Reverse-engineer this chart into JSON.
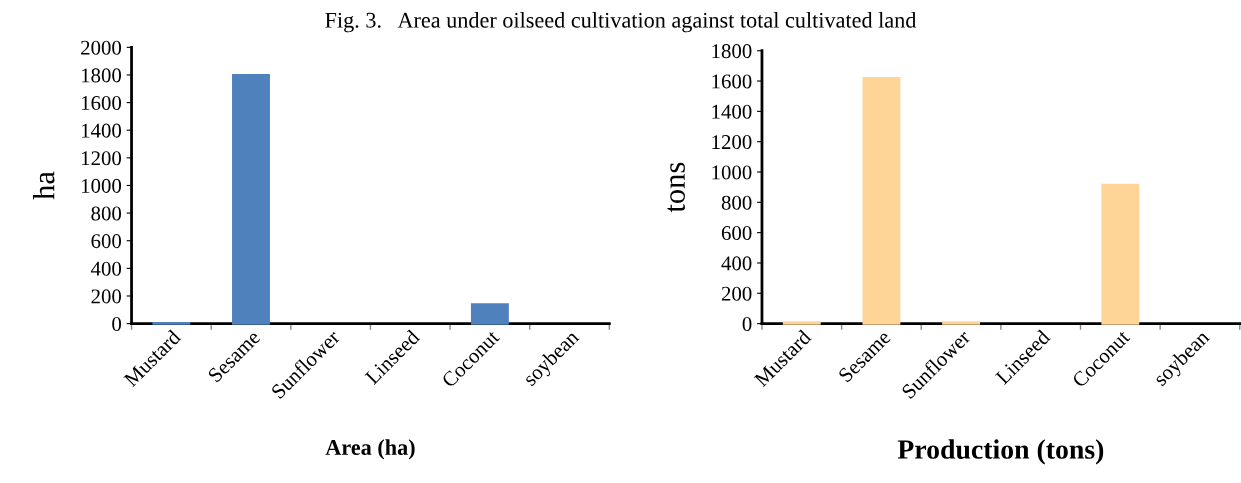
{
  "chart_data": [
    {
      "type": "bar",
      "title": "Fig. 3.   Area under oilseed cultivation against total cultivated land",
      "xlabel": "Area (ha)",
      "ylabel": "ha",
      "categories": [
        "Mustard",
        "Sesame",
        "Sunflower",
        "Linseed",
        "Coconut",
        "soybean"
      ],
      "values": [
        5,
        1800,
        0,
        0,
        140,
        0
      ],
      "color": "#4f81bd",
      "ylim": [
        0,
        2000
      ],
      "yticks": [
        0,
        200,
        400,
        600,
        800,
        1000,
        1200,
        1400,
        1600,
        1800,
        2000
      ],
      "grid": false
    },
    {
      "type": "bar",
      "xlabel": "Production (tons)",
      "ylabel": "tons",
      "categories": [
        "Mustard",
        "Sesame",
        "Sunflower",
        "Linseed",
        "Coconut",
        "soybean"
      ],
      "values": [
        8,
        1620,
        8,
        0,
        915,
        0
      ],
      "color": "#fed597",
      "ylim": [
        0,
        1800
      ],
      "yticks": [
        0,
        200,
        400,
        600,
        800,
        1000,
        1200,
        1400,
        1600,
        1800
      ],
      "grid": false
    }
  ]
}
